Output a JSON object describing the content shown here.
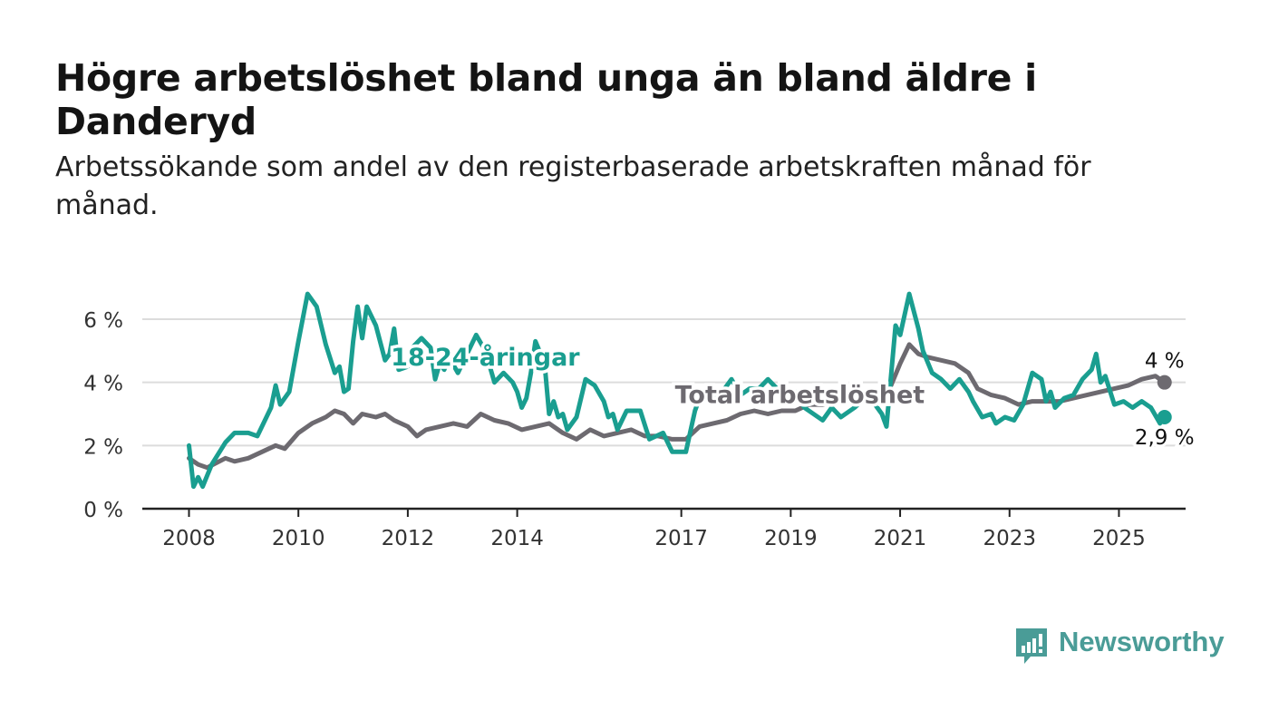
{
  "title": "Högre arbetslöshet bland unga än bland äldre i Danderyd",
  "subtitle": "Arbetssökande som andel av den registerbaserade arbetskraften månad för månad.",
  "brand": {
    "name": "Newsworthy",
    "color": "#4a9c97"
  },
  "chart_data": {
    "type": "line",
    "xlabel": "",
    "ylabel": "",
    "x_range": [
      "2008-01",
      "2025-08"
    ],
    "x_ticks": [
      "2008",
      "2010",
      "2012",
      "2014",
      "2017",
      "2019",
      "2021",
      "2023",
      "2025"
    ],
    "ylim": [
      0,
      7
    ],
    "y_ticks": [
      0,
      2,
      4,
      6
    ],
    "y_tick_labels": [
      "0 %",
      "2 %",
      "4 %",
      "6 %"
    ],
    "grid": true,
    "series": [
      {
        "name": "18-24-åringar",
        "color": "#1a9e90",
        "end_label": "2,9 %",
        "points": [
          [
            "2008-01",
            2.0
          ],
          [
            "2008-02",
            0.7
          ],
          [
            "2008-03",
            1.0
          ],
          [
            "2008-04",
            0.7
          ],
          [
            "2008-06",
            1.4
          ],
          [
            "2008-09",
            2.1
          ],
          [
            "2008-11",
            2.4
          ],
          [
            "2009-02",
            2.4
          ],
          [
            "2009-04",
            2.3
          ],
          [
            "2009-07",
            3.2
          ],
          [
            "2009-08",
            3.9
          ],
          [
            "2009-09",
            3.3
          ],
          [
            "2009-10",
            3.5
          ],
          [
            "2009-11",
            3.7
          ],
          [
            "2010-01",
            5.3
          ],
          [
            "2010-03",
            6.8
          ],
          [
            "2010-05",
            6.4
          ],
          [
            "2010-07",
            5.2
          ],
          [
            "2010-09",
            4.3
          ],
          [
            "2010-10",
            4.5
          ],
          [
            "2010-11",
            3.7
          ],
          [
            "2010-12",
            3.8
          ],
          [
            "2011-01",
            5.3
          ],
          [
            "2011-02",
            6.4
          ],
          [
            "2011-03",
            5.4
          ],
          [
            "2011-04",
            6.4
          ],
          [
            "2011-06",
            5.8
          ],
          [
            "2011-08",
            4.7
          ],
          [
            "2011-09",
            4.9
          ],
          [
            "2011-10",
            5.7
          ],
          [
            "2011-11",
            4.4
          ],
          [
            "2012-01",
            4.5
          ],
          [
            "2012-02",
            5.1
          ],
          [
            "2012-04",
            5.4
          ],
          [
            "2012-06",
            5.1
          ],
          [
            "2012-07",
            4.1
          ],
          [
            "2012-08",
            4.6
          ],
          [
            "2012-09",
            4.4
          ],
          [
            "2012-10",
            4.8
          ],
          [
            "2012-12",
            4.3
          ],
          [
            "2013-02",
            4.9
          ],
          [
            "2013-04",
            5.5
          ],
          [
            "2013-06",
            5.0
          ],
          [
            "2013-08",
            4.0
          ],
          [
            "2013-10",
            4.3
          ],
          [
            "2013-12",
            4.0
          ],
          [
            "2014-01",
            3.7
          ],
          [
            "2014-02",
            3.2
          ],
          [
            "2014-03",
            3.5
          ],
          [
            "2014-04",
            4.3
          ],
          [
            "2014-05",
            5.3
          ],
          [
            "2014-07",
            4.6
          ],
          [
            "2014-08",
            3.0
          ],
          [
            "2014-09",
            3.4
          ],
          [
            "2014-10",
            2.9
          ],
          [
            "2014-11",
            3.0
          ],
          [
            "2014-12",
            2.5
          ],
          [
            "2015-02",
            2.9
          ],
          [
            "2015-04",
            4.1
          ],
          [
            "2015-06",
            3.9
          ],
          [
            "2015-08",
            3.4
          ],
          [
            "2015-09",
            2.9
          ],
          [
            "2015-10",
            3.0
          ],
          [
            "2015-11",
            2.5
          ],
          [
            "2016-01",
            3.1
          ],
          [
            "2016-04",
            3.1
          ],
          [
            "2016-06",
            2.2
          ],
          [
            "2016-09",
            2.4
          ],
          [
            "2016-11",
            1.8
          ],
          [
            "2017-02",
            1.8
          ],
          [
            "2017-04",
            3.1
          ],
          [
            "2017-05",
            3.5
          ],
          [
            "2017-07",
            3.6
          ],
          [
            "2017-08",
            3.5
          ],
          [
            "2017-10",
            3.7
          ],
          [
            "2017-12",
            4.1
          ],
          [
            "2018-02",
            3.6
          ],
          [
            "2018-04",
            3.8
          ],
          [
            "2018-06",
            3.8
          ],
          [
            "2018-08",
            4.1
          ],
          [
            "2018-10",
            3.8
          ],
          [
            "2018-12",
            3.4
          ],
          [
            "2019-02",
            3.7
          ],
          [
            "2019-04",
            3.2
          ],
          [
            "2019-06",
            3.0
          ],
          [
            "2019-08",
            2.8
          ],
          [
            "2019-10",
            3.2
          ],
          [
            "2019-12",
            2.9
          ],
          [
            "2020-03",
            3.2
          ],
          [
            "2020-06",
            3.6
          ],
          [
            "2020-09",
            3.0
          ],
          [
            "2020-10",
            2.6
          ],
          [
            "2020-12",
            5.8
          ],
          [
            "2021-01",
            5.5
          ],
          [
            "2021-03",
            6.8
          ],
          [
            "2021-05",
            5.7
          ],
          [
            "2021-06",
            5.0
          ],
          [
            "2021-08",
            4.3
          ],
          [
            "2021-10",
            4.1
          ],
          [
            "2021-12",
            3.8
          ],
          [
            "2022-02",
            4.1
          ],
          [
            "2022-04",
            3.7
          ],
          [
            "2022-05",
            3.4
          ],
          [
            "2022-07",
            2.9
          ],
          [
            "2022-09",
            3.0
          ],
          [
            "2022-10",
            2.7
          ],
          [
            "2022-12",
            2.9
          ],
          [
            "2023-02",
            2.8
          ],
          [
            "2023-04",
            3.3
          ],
          [
            "2023-06",
            4.3
          ],
          [
            "2023-08",
            4.1
          ],
          [
            "2023-09",
            3.4
          ],
          [
            "2023-10",
            3.7
          ],
          [
            "2023-11",
            3.2
          ],
          [
            "2024-01",
            3.5
          ],
          [
            "2024-03",
            3.6
          ],
          [
            "2024-05",
            4.1
          ],
          [
            "2024-07",
            4.4
          ],
          [
            "2024-08",
            4.9
          ],
          [
            "2024-09",
            4.0
          ],
          [
            "2024-10",
            4.2
          ],
          [
            "2024-12",
            3.3
          ],
          [
            "2025-02",
            3.4
          ],
          [
            "2025-04",
            3.2
          ],
          [
            "2025-06",
            3.4
          ],
          [
            "2025-08",
            3.2
          ],
          [
            "2025-10",
            2.7
          ],
          [
            "2025-11",
            2.9
          ]
        ]
      },
      {
        "name": "Total arbetslöshet",
        "color": "#6d6a70",
        "end_label": "4 %",
        "points": [
          [
            "2008-01",
            1.6
          ],
          [
            "2008-03",
            1.4
          ],
          [
            "2008-05",
            1.3
          ],
          [
            "2008-09",
            1.6
          ],
          [
            "2008-11",
            1.5
          ],
          [
            "2009-02",
            1.6
          ],
          [
            "2009-05",
            1.8
          ],
          [
            "2009-08",
            2.0
          ],
          [
            "2009-10",
            1.9
          ],
          [
            "2010-01",
            2.4
          ],
          [
            "2010-04",
            2.7
          ],
          [
            "2010-07",
            2.9
          ],
          [
            "2010-09",
            3.1
          ],
          [
            "2010-11",
            3.0
          ],
          [
            "2011-01",
            2.7
          ],
          [
            "2011-03",
            3.0
          ],
          [
            "2011-06",
            2.9
          ],
          [
            "2011-08",
            3.0
          ],
          [
            "2011-10",
            2.8
          ],
          [
            "2012-01",
            2.6
          ],
          [
            "2012-03",
            2.3
          ],
          [
            "2012-05",
            2.5
          ],
          [
            "2012-08",
            2.6
          ],
          [
            "2012-11",
            2.7
          ],
          [
            "2013-02",
            2.6
          ],
          [
            "2013-05",
            3.0
          ],
          [
            "2013-08",
            2.8
          ],
          [
            "2013-11",
            2.7
          ],
          [
            "2014-02",
            2.5
          ],
          [
            "2014-05",
            2.6
          ],
          [
            "2014-08",
            2.7
          ],
          [
            "2014-11",
            2.4
          ],
          [
            "2015-02",
            2.2
          ],
          [
            "2015-05",
            2.5
          ],
          [
            "2015-08",
            2.3
          ],
          [
            "2015-11",
            2.4
          ],
          [
            "2016-02",
            2.5
          ],
          [
            "2016-05",
            2.3
          ],
          [
            "2016-08",
            2.3
          ],
          [
            "2016-11",
            2.2
          ],
          [
            "2017-02",
            2.2
          ],
          [
            "2017-05",
            2.6
          ],
          [
            "2017-08",
            2.7
          ],
          [
            "2017-11",
            2.8
          ],
          [
            "2018-02",
            3.0
          ],
          [
            "2018-05",
            3.1
          ],
          [
            "2018-08",
            3.0
          ],
          [
            "2018-11",
            3.1
          ],
          [
            "2019-02",
            3.1
          ],
          [
            "2019-05",
            3.3
          ],
          [
            "2019-08",
            3.3
          ],
          [
            "2019-11",
            3.4
          ],
          [
            "2020-02",
            3.5
          ],
          [
            "2020-05",
            3.6
          ],
          [
            "2020-08",
            3.7
          ],
          [
            "2020-11",
            3.9
          ],
          [
            "2021-01",
            4.6
          ],
          [
            "2021-03",
            5.2
          ],
          [
            "2021-05",
            4.9
          ],
          [
            "2021-07",
            4.8
          ],
          [
            "2021-10",
            4.7
          ],
          [
            "2022-01",
            4.6
          ],
          [
            "2022-04",
            4.3
          ],
          [
            "2022-06",
            3.8
          ],
          [
            "2022-09",
            3.6
          ],
          [
            "2022-12",
            3.5
          ],
          [
            "2023-03",
            3.3
          ],
          [
            "2023-06",
            3.4
          ],
          [
            "2023-09",
            3.4
          ],
          [
            "2023-12",
            3.4
          ],
          [
            "2024-03",
            3.5
          ],
          [
            "2024-06",
            3.6
          ],
          [
            "2024-09",
            3.7
          ],
          [
            "2024-12",
            3.8
          ],
          [
            "2025-03",
            3.9
          ],
          [
            "2025-06",
            4.1
          ],
          [
            "2025-09",
            4.2
          ],
          [
            "2025-11",
            4.0
          ]
        ]
      }
    ],
    "annotations": [
      {
        "text": "18-24-åringar",
        "series": "18-24-åringar",
        "x": "2013-06",
        "y": 4.8
      },
      {
        "text": "Total arbetslöshet",
        "series": "Total arbetslöshet",
        "x": "2019-03",
        "y": 3.6
      }
    ]
  }
}
